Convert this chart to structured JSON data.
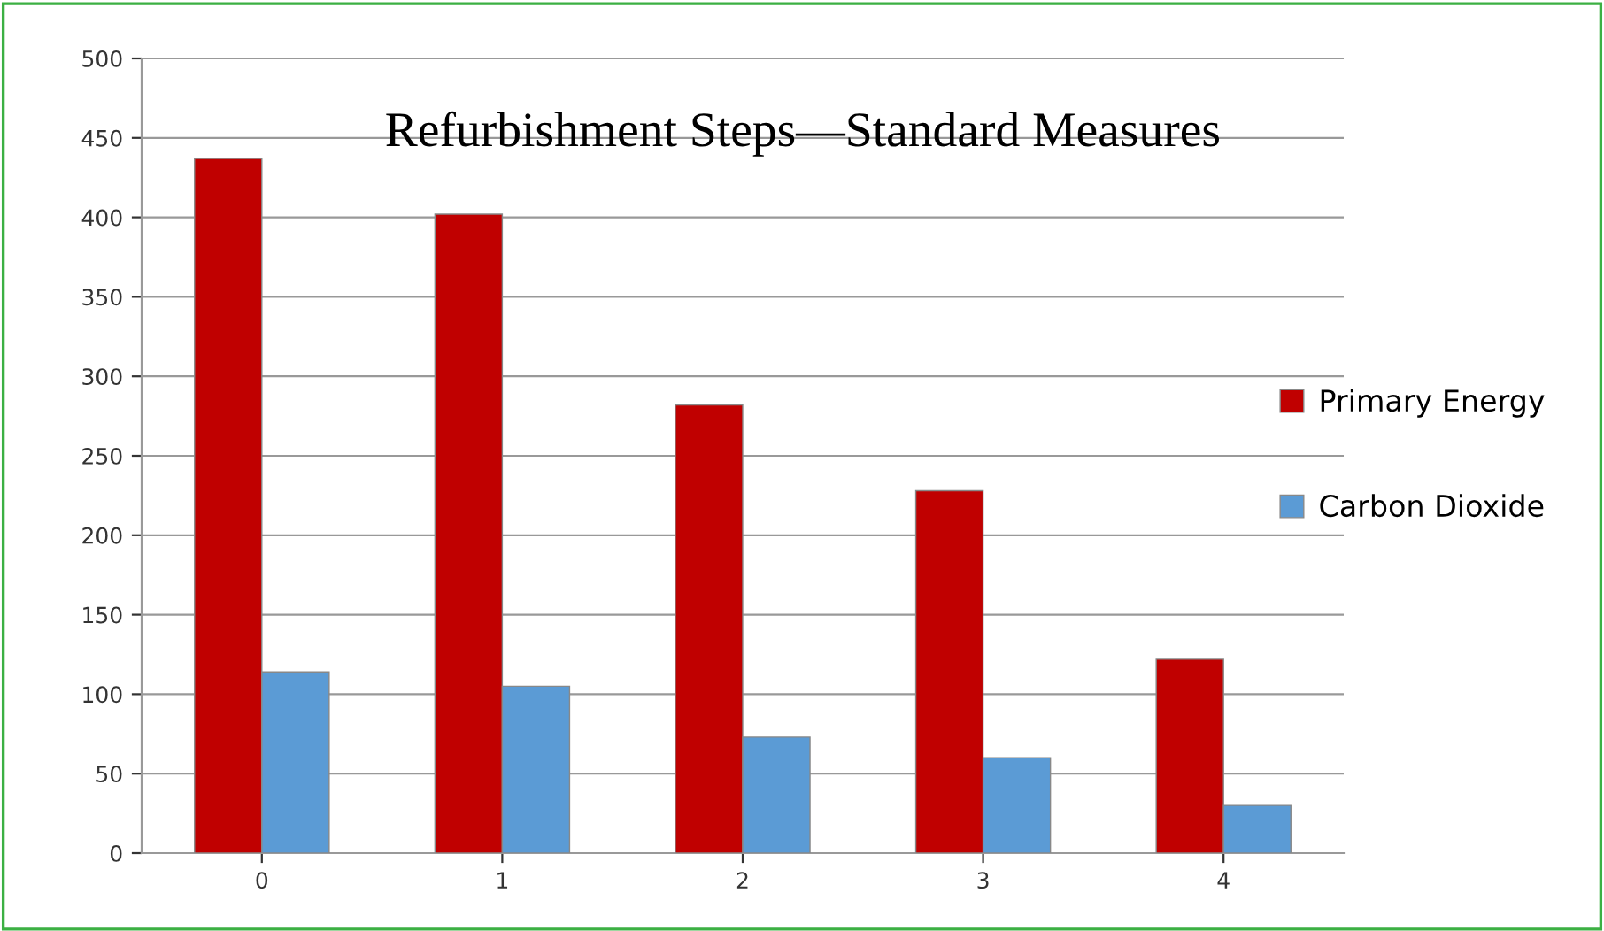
{
  "chart_data": {
    "type": "bar",
    "title": "Refurbishment Steps—Standard Measures",
    "categories": [
      "0",
      "1",
      "2",
      "3",
      "4"
    ],
    "series": [
      {
        "name": "Primary Energy",
        "color": "#c00000",
        "values": [
          437,
          402,
          282,
          228,
          122
        ]
      },
      {
        "name": "Carbon Dioxide",
        "color": "#5b9bd5",
        "values": [
          114,
          105,
          73,
          60,
          30
        ]
      }
    ],
    "ylim": [
      0,
      500
    ],
    "yticks": [
      0,
      50,
      100,
      150,
      200,
      250,
      300,
      350,
      400,
      450,
      500
    ],
    "grid": "y",
    "legend": "right"
  }
}
